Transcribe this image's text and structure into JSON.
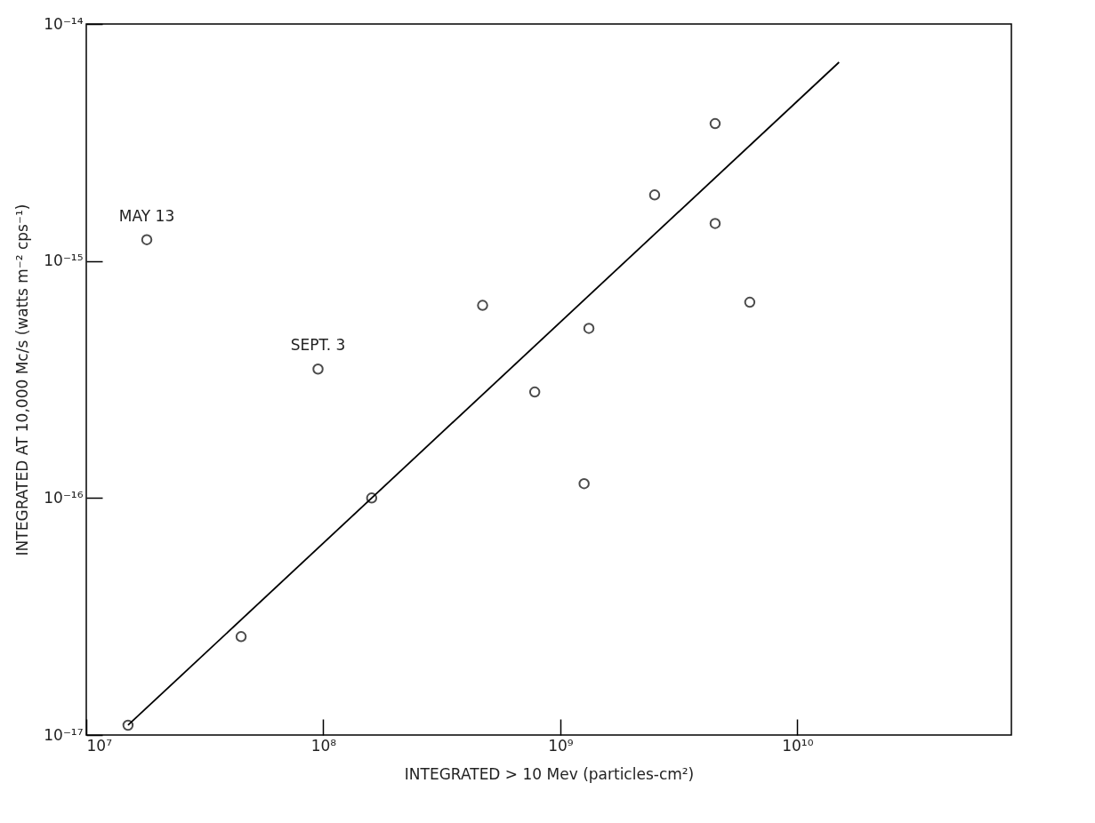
{
  "chart_data": {
    "type": "scatter",
    "xlabel": "INTEGRATED > 10 Mev (particles-cm²)",
    "ylabel": "INTEGRATED AT 10,000 Mc/s (watts m⁻² cps⁻¹)",
    "log": "xy",
    "grid": false,
    "marker": "circle",
    "xlim": [
      10000000.0,
      80000000000.0
    ],
    "ylim": [
      1e-17,
      1e-14
    ],
    "xticks": [
      {
        "value": 10000000.0,
        "label": "10⁷"
      },
      {
        "value": 100000000.0,
        "label": "10⁸"
      },
      {
        "value": 1000000000.0,
        "label": "10⁹"
      },
      {
        "value": 10000000000.0,
        "label": "10¹⁰"
      }
    ],
    "yticks": [
      {
        "value": 1e-17,
        "label": "10⁻¹⁷"
      },
      {
        "value": 1e-16,
        "label": "10⁻¹⁶"
      },
      {
        "value": 1e-15,
        "label": "10⁻¹⁵"
      },
      {
        "value": 1e-14,
        "label": "10⁻¹⁴"
      }
    ],
    "series": [
      {
        "color": "#000000",
        "x": [
          15000000.0,
          18000000.0,
          45000000.0,
          95000000.0,
          160000000.0,
          470000000.0,
          780000000.0,
          1260000000.0,
          1320000000.0,
          2500000000.0,
          4500000000.0,
          4500000000.0,
          6300000000.0
        ],
        "values": [
          1.1e-17,
          1.23e-15,
          2.6e-17,
          3.5e-16,
          1e-16,
          6.5e-16,
          2.8e-16,
          1.15e-16,
          5.2e-16,
          1.9e-15,
          3.8e-15,
          1.44e-15,
          6.7e-16
        ]
      },
      {
        "type": "line",
        "color": "#000000",
        "line_style": "solid",
        "marker": "none",
        "x": [
          15000000.0,
          15000000000.0
        ],
        "values": [
          1.1e-17,
          6.9e-15
        ]
      }
    ],
    "annotations": [
      {
        "text": "MAY 13",
        "x": 18000000.0,
        "y": 1.23e-15
      },
      {
        "text": "SEPT. 3",
        "x": 95000000.0,
        "y": 3.5e-16
      }
    ]
  }
}
